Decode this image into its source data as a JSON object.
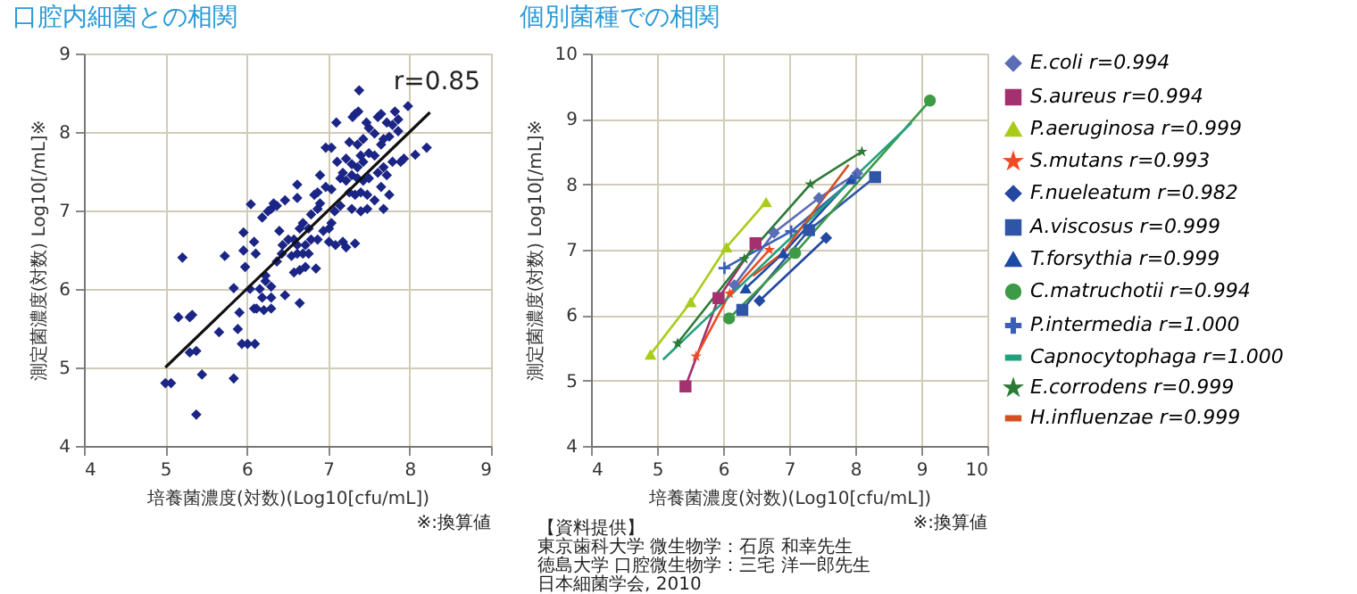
{
  "chart_data": [
    {
      "type": "scatter",
      "title": "口腔内細菌との相関",
      "xlabel": "培養菌濃度(対数)(Log10[cfu/mL])",
      "ylabel": "測定菌濃度(対数) Log10[/mL]※",
      "xlim": [
        4,
        9
      ],
      "ylim": [
        4,
        9
      ],
      "xticks": [
        4,
        5,
        6,
        7,
        8,
        9
      ],
      "yticks": [
        4,
        5,
        6,
        7,
        8,
        9
      ],
      "grid": true,
      "annotations": [
        "r=0.85",
        "※:換算値"
      ],
      "series": [
        {
          "type": "scatter",
          "color": "#1b2585",
          "marker": "diamond",
          "x": [
            5.0,
            5.07,
            5.38,
            5.45,
            5.84,
            5.21,
            5.73,
            5.16,
            5.3,
            5.33,
            5.3,
            5.38,
            5.66,
            5.89,
            5.84,
            5.94,
            6.01,
            6.1,
            5.91,
            5.96,
            5.96,
            6.05,
            6.09,
            6.11,
            5.98,
            6.04,
            6.09,
            6.12,
            6.21,
            6.19,
            6.23,
            6.3,
            6.3,
            6.19,
            6.26,
            6.3,
            6.33,
            6.37,
            6.4,
            6.47,
            6.65,
            6.44,
            6.51,
            6.58,
            6.62,
            6.47,
            6.62,
            6.62,
            6.55,
            6.62,
            6.69,
            6.76,
            6.58,
            6.65,
            6.72,
            6.85,
            6.76,
            6.65,
            6.69,
            6.79,
            6.87,
            6.9,
            6.83,
            6.87,
            6.97,
            7.04,
            6.9,
            6.94,
            7.01,
            7.09,
            7.04,
            7.08,
            7.15,
            6.97,
            7.04,
            7.1,
            7.18,
            7.22,
            7.33,
            7.26,
            7.3,
            7.33,
            7.37,
            7.38,
            7.22,
            7.29,
            7.36,
            7.43,
            7.15,
            7.22,
            7.29,
            7.36,
            7.43,
            7.5,
            7.26,
            7.33,
            7.4,
            7.48,
            7.29,
            7.4,
            7.48,
            7.5,
            7.57,
            7.5,
            7.61,
            7.65,
            7.72,
            7.47,
            7.57,
            7.68,
            7.75,
            7.65,
            7.82,
            7.86,
            7.98,
            7.79,
            7.86,
            7.61,
            7.68,
            7.75,
            7.65,
            7.57,
            7.72,
            7.68,
            7.79,
            7.89,
            7.93,
            8.07,
            8.21,
            6.37,
            6.43,
            6.23,
            6.3,
            6.16,
            6.79,
            6.87,
            6.72,
            7.01,
            7.11,
            7.18,
            7.36,
            7.43,
            7.4
          ],
          "values": [
            4.8,
            4.8,
            4.4,
            4.91,
            4.86,
            6.4,
            6.42,
            5.64,
            5.64,
            5.67,
            5.19,
            5.21,
            5.45,
            5.49,
            6.01,
            5.3,
            5.3,
            5.3,
            5.7,
            6.49,
            6.72,
            7.08,
            6.6,
            6.45,
            6.28,
            6.0,
            5.75,
            5.75,
            5.73,
            5.89,
            6.1,
            5.75,
            5.89,
            6.91,
            6.99,
            7.02,
            7.09,
            7.06,
            6.74,
            5.92,
            5.82,
            6.56,
            6.63,
            6.63,
            6.56,
            7.13,
            7.33,
            7.16,
            6.42,
            6.45,
            6.45,
            6.45,
            6.21,
            6.24,
            6.28,
            6.26,
            6.77,
            6.77,
            6.84,
            6.95,
            7.02,
            7.09,
            7.2,
            7.23,
            7.3,
            7.27,
            7.45,
            6.74,
            6.6,
            6.56,
            6.84,
            6.99,
            7.06,
            7.8,
            7.8,
            8.12,
            6.6,
            6.53,
            6.58,
            7.87,
            8.19,
            8.23,
            8.26,
            8.53,
            7.66,
            7.59,
            7.55,
            7.62,
            7.41,
            7.38,
            7.45,
            7.41,
            7.38,
            7.41,
            7.23,
            7.2,
            7.23,
            7.2,
            7.02,
            6.99,
            7.02,
            7.73,
            7.7,
            8.05,
            8.19,
            8.23,
            8.12,
            8.12,
            7.98,
            7.91,
            7.94,
            7.84,
            8.26,
            8.16,
            8.33,
            8.09,
            8.01,
            7.48,
            7.55,
            7.2,
            7.3,
            7.13,
            7.45,
            7.02,
            7.62,
            7.62,
            7.66,
            7.71,
            7.8,
            6.35,
            6.45,
            6.17,
            6.03,
            6.0,
            6.63,
            6.63,
            6.56,
            6.77,
            7.62,
            7.48,
            7.84,
            7.91,
            7.7
          ]
        },
        {
          "type": "line",
          "color": "#111111",
          "x": [
            5.0,
            8.25
          ],
          "values": [
            5.0,
            8.25
          ]
        }
      ]
    },
    {
      "type": "line",
      "title": "個別菌種での相関",
      "xlabel": "培養菌濃度(対数)(Log10[cfu/mL])",
      "ylabel": "測定菌濃度(対数) Log10[/mL]※",
      "xlim": [
        4,
        10
      ],
      "ylim": [
        4,
        10
      ],
      "xticks": [
        4,
        5,
        6,
        7,
        8,
        9,
        10
      ],
      "yticks": [
        4,
        5,
        6,
        7,
        8,
        9,
        10
      ],
      "grid": true,
      "legend": "right",
      "annotations": [
        "※:換算値",
        "【資料提供】",
        "東京歯科大学 微生物学：石原 和幸先生",
        "徳島大学 口腔微生物学：三宅 洋一郎先生",
        "日本細菌学会, 2010"
      ],
      "series": [
        {
          "name": "E.coli r=0.994",
          "color": "#5b6db5",
          "marker": "diamond",
          "x": [
            6.17,
            6.77,
            7.45,
            8.03
          ],
          "values": [
            6.46,
            7.26,
            7.79,
            8.17
          ]
        },
        {
          "name": "S.aureus r=0.994",
          "color": "#a3306f",
          "marker": "square",
          "x": [
            5.43,
            5.93,
            6.49
          ],
          "values": [
            4.91,
            6.26,
            7.1
          ]
        },
        {
          "name": "P.aeruginosa r=0.999",
          "color": "#a9cc1a",
          "marker": "triangle",
          "x": [
            4.9,
            5.51,
            6.05,
            6.65
          ],
          "values": [
            5.4,
            6.2,
            7.04,
            7.73
          ]
        },
        {
          "name": "S.mutans r=0.993",
          "color": "#ef4a23",
          "marker": "star",
          "x": [
            5.59,
            6.1,
            6.7
          ],
          "values": [
            5.37,
            6.33,
            7.0
          ]
        },
        {
          "name": "F.nueleatum r=0.982",
          "color": "#2348a2",
          "marker": "diamond",
          "x": [
            6.55,
            7.56
          ],
          "values": [
            6.22,
            7.18
          ]
        },
        {
          "name": "A.viscosus r=0.999",
          "color": "#2f55a8",
          "marker": "square",
          "x": [
            6.29,
            7.3,
            8.3
          ],
          "values": [
            6.08,
            7.3,
            8.11
          ]
        },
        {
          "name": "T.forsythia r=0.999",
          "color": "#1d4aa5",
          "marker": "triangle",
          "x": [
            6.34,
            6.91,
            7.94
          ],
          "values": [
            6.41,
            6.95,
            8.08
          ]
        },
        {
          "name": "C.matruchotii r=0.994",
          "color": "#3d9a46",
          "marker": "circle",
          "x": [
            6.09,
            7.09,
            9.13
          ],
          "values": [
            5.95,
            6.95,
            9.28
          ]
        },
        {
          "name": "P.intermedia r=1.000",
          "color": "#3a5fb8",
          "marker": "cross",
          "x": [
            6.02,
            7.03,
            8.0
          ],
          "values": [
            6.72,
            7.28,
            8.1
          ]
        },
        {
          "name": "Capnocytophaga r=1.000",
          "color": "#22a07e",
          "x": [
            5.09,
            8.85
          ],
          "values": [
            5.32,
            8.94
          ]
        },
        {
          "name": "E.corrodens r=0.999",
          "color": "#2b7a35",
          "marker": "star",
          "x": [
            5.31,
            6.32,
            7.32,
            8.1
          ],
          "values": [
            5.57,
            6.86,
            8.0,
            8.5
          ]
        },
        {
          "name": "H.influenzae r=0.999",
          "color": "#d5501f",
          "x": [
            6.45,
            6.9,
            7.9
          ],
          "values": [
            6.6,
            6.95,
            8.3
          ]
        }
      ]
    }
  ]
}
